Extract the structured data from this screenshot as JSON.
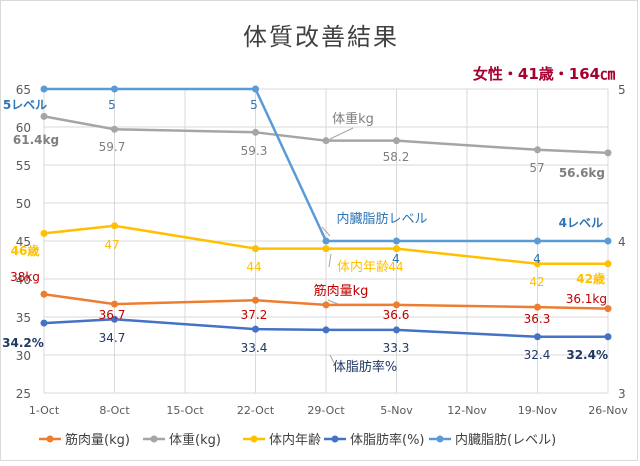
{
  "chart_data": {
    "type": "line",
    "title": "体質改善結果",
    "subtitle": "女性・41歳・164㎝",
    "categories": [
      "1-Oct",
      "8-Oct",
      "15-Oct",
      "22-Oct",
      "29-Oct",
      "5-Nov",
      "12-Nov",
      "19-Nov",
      "26-Nov"
    ],
    "y_left": {
      "min": 25,
      "max": 65,
      "ticks": [
        "25",
        "30",
        "35",
        "40",
        "45",
        "50",
        "55",
        "60",
        "65"
      ]
    },
    "y_right": {
      "min": 3,
      "max": 5,
      "ticks": [
        "3",
        "4",
        "5"
      ]
    },
    "grid": true,
    "legend_position": "bottom",
    "series": [
      {
        "name": "筋肉量(kg)",
        "axis": "left",
        "color": "#ED7D31",
        "points": [
          [
            0,
            38
          ],
          [
            1,
            36.7
          ],
          [
            3,
            37.2
          ],
          [
            4,
            36.6
          ],
          [
            5,
            36.6
          ],
          [
            7,
            36.3
          ],
          [
            8,
            36.1
          ]
        ]
      },
      {
        "name": "体重(kg)",
        "axis": "left",
        "color": "#A5A5A5",
        "points": [
          [
            0,
            61.4
          ],
          [
            1,
            59.7
          ],
          [
            3,
            59.3
          ],
          [
            4,
            58.2
          ],
          [
            5,
            58.2
          ],
          [
            7,
            57
          ],
          [
            8,
            56.6
          ]
        ]
      },
      {
        "name": "体内年齢",
        "axis": "left",
        "color": "#FFC000",
        "points": [
          [
            0,
            46
          ],
          [
            1,
            47
          ],
          [
            3,
            44
          ],
          [
            4,
            44
          ],
          [
            5,
            44
          ],
          [
            7,
            42
          ],
          [
            8,
            42
          ]
        ]
      },
      {
        "name": "体脂肪率(%)",
        "axis": "left",
        "color": "#4472C4",
        "points": [
          [
            0,
            34.2
          ],
          [
            1,
            34.7
          ],
          [
            3,
            33.4
          ],
          [
            4,
            33.3
          ],
          [
            5,
            33.3
          ],
          [
            7,
            32.4
          ],
          [
            8,
            32.4
          ]
        ]
      },
      {
        "name": "内臓脂肪(レベル)",
        "axis": "right",
        "color": "#5B9BD5",
        "points": [
          [
            0,
            5
          ],
          [
            1,
            5
          ],
          [
            3,
            5
          ],
          [
            4,
            4
          ],
          [
            5,
            4
          ],
          [
            7,
            4
          ],
          [
            8,
            4
          ]
        ]
      }
    ],
    "data_labels": [
      {
        "text": "5レベル",
        "color": "#2E75B6",
        "bold": true
      },
      {
        "text": "5",
        "color": "#2E75B6"
      },
      {
        "text": "5",
        "color": "#2E75B6"
      },
      {
        "text": "4",
        "color": "#2E75B6"
      },
      {
        "text": "4",
        "color": "#2E75B6"
      },
      {
        "text": "4レベル",
        "color": "#2E75B6",
        "bold": true
      },
      {
        "text": "61.4kg",
        "color": "#7F7F7F",
        "bold": true
      },
      {
        "text": "59.7",
        "color": "#7F7F7F"
      },
      {
        "text": "59.3",
        "color": "#7F7F7F"
      },
      {
        "text": "58.2",
        "color": "#7F7F7F"
      },
      {
        "text": "57",
        "color": "#7F7F7F"
      },
      {
        "text": "56.6kg",
        "color": "#7F7F7F",
        "bold": true
      },
      {
        "text": "46歳",
        "color": "#FFC000",
        "bold": true
      },
      {
        "text": "47",
        "color": "#FFC000"
      },
      {
        "text": "44",
        "color": "#FFC000"
      },
      {
        "text": "44",
        "color": "#FFC000"
      },
      {
        "text": "42",
        "color": "#FFC000"
      },
      {
        "text": "42歳",
        "color": "#FFC000",
        "bold": true
      },
      {
        "text": "38kg",
        "color": "#C00000"
      },
      {
        "text": "36.7",
        "color": "#C00000"
      },
      {
        "text": "37.2",
        "color": "#C00000"
      },
      {
        "text": "36.6",
        "color": "#C00000"
      },
      {
        "text": "36.3",
        "color": "#C00000"
      },
      {
        "text": "36.1kg",
        "color": "#C00000"
      },
      {
        "text": "34.2%",
        "color": "#203864",
        "bold": true
      },
      {
        "text": "34.7",
        "color": "#203864"
      },
      {
        "text": "33.4",
        "color": "#203864"
      },
      {
        "text": "33.3",
        "color": "#203864"
      },
      {
        "text": "32.4",
        "color": "#203864"
      },
      {
        "text": "32.4%",
        "color": "#203864",
        "bold": true
      }
    ],
    "annotations": [
      {
        "text": "体重kg",
        "color": "#7F7F7F"
      },
      {
        "text": "内臓脂肪レベル",
        "color": "#2E75B6"
      },
      {
        "text": "体内年齢",
        "color": "#FFC000"
      },
      {
        "text": "筋肉量kg",
        "color": "#C00000"
      },
      {
        "text": "体脂肪率%",
        "color": "#203864"
      }
    ]
  }
}
